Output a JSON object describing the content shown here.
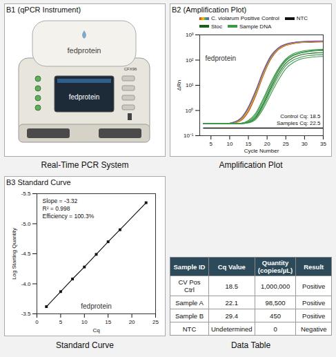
{
  "instrument": {
    "title": "B1 (qPCR Instrument)",
    "lid_label": "fedprotein",
    "model_label": "CFX96",
    "screen_text": "fedprotein",
    "caption": "Real-Time PCR System"
  },
  "chart_data": [
    {
      "type": "line",
      "title": "B2 (Amplification Plot)",
      "caption": "Amplification Plot",
      "watermark": "fedprotein",
      "x_label": "Cycle Number",
      "y_label": "ΔRn",
      "x": [
        3,
        5,
        7,
        9,
        11,
        13,
        15,
        17,
        19,
        21,
        23,
        25,
        27,
        29,
        31,
        33,
        35
      ],
      "series": [
        {
          "name": "C. violarum Positive Control",
          "color": "#e41a1c",
          "values": [
            0.3,
            0.3,
            0.3,
            0.3,
            0.32,
            0.4,
            0.9,
            4,
            25,
            110,
            260,
            380,
            450,
            490,
            510,
            520,
            525
          ]
        },
        {
          "name": "C. violarum Positive Control",
          "color": "#ff7f00",
          "values": [
            0.3,
            0.3,
            0.3,
            0.3,
            0.32,
            0.42,
            1.0,
            4.5,
            28,
            120,
            270,
            390,
            460,
            500,
            520,
            530,
            535
          ]
        },
        {
          "name": "C. violarum Positive Control",
          "color": "#f5c400",
          "values": [
            0.3,
            0.3,
            0.3,
            0.3,
            0.33,
            0.44,
            1.1,
            5,
            30,
            125,
            280,
            400,
            470,
            510,
            530,
            540,
            545
          ]
        },
        {
          "name": "C. violarum Positive Control",
          "color": "#4daf4a",
          "values": [
            0.3,
            0.3,
            0.3,
            0.3,
            0.33,
            0.46,
            1.2,
            5.5,
            33,
            130,
            290,
            410,
            480,
            520,
            540,
            550,
            555
          ]
        },
        {
          "name": "C. violarum Positive Control",
          "color": "#377eb8",
          "values": [
            0.3,
            0.3,
            0.3,
            0.3,
            0.34,
            0.48,
            1.3,
            6,
            35,
            140,
            300,
            420,
            490,
            530,
            550,
            560,
            565
          ]
        },
        {
          "name": "C. violarum Positive Control",
          "color": "#984ea3",
          "values": [
            0.3,
            0.3,
            0.3,
            0.3,
            0.34,
            0.5,
            1.4,
            6.5,
            38,
            150,
            310,
            430,
            500,
            540,
            560,
            570,
            575
          ]
        },
        {
          "name": "NTC",
          "color": "#111111",
          "values": [
            0.2,
            0.2,
            0.2,
            0.2,
            0.2,
            0.2,
            0.2,
            0.2,
            0.2,
            0.2,
            0.2,
            0.2,
            0.2,
            0.2,
            0.2,
            0.2,
            0.2
          ]
        },
        {
          "name": "Stoc",
          "color": "#1b5e20",
          "values": [
            0.3,
            0.3,
            0.3,
            0.3,
            0.3,
            0.3,
            0.34,
            0.55,
            1.8,
            7.5,
            28,
            75,
            125,
            160,
            180,
            192,
            198
          ]
        },
        {
          "name": "Sample DNA",
          "color": "#3a9a48",
          "values": [
            0.3,
            0.3,
            0.3,
            0.3,
            0.3,
            0.31,
            0.35,
            0.6,
            2,
            9,
            35,
            90,
            150,
            190,
            215,
            230,
            238
          ]
        },
        {
          "name": "Sample DNA",
          "color": "#3a9a48",
          "values": [
            0.3,
            0.3,
            0.3,
            0.3,
            0.3,
            0.31,
            0.37,
            0.7,
            2.5,
            11,
            40,
            100,
            160,
            200,
            225,
            240,
            248
          ]
        },
        {
          "name": "Sample DNA",
          "color": "#3a9a48",
          "values": [
            0.3,
            0.3,
            0.3,
            0.3,
            0.3,
            0.3,
            0.33,
            0.5,
            1.5,
            6,
            22,
            60,
            100,
            130,
            150,
            160,
            165
          ]
        },
        {
          "name": "Sample DNA",
          "color": "#3a9a48",
          "values": [
            0.3,
            0.3,
            0.3,
            0.3,
            0.3,
            0.3,
            0.32,
            0.45,
            1.2,
            4.5,
            16,
            45,
            80,
            110,
            125,
            135,
            140
          ]
        },
        {
          "name": "Sample DNA",
          "color": "#3a9a48",
          "values": [
            0.3,
            0.3,
            0.3,
            0.3,
            0.3,
            0.31,
            0.4,
            0.8,
            3,
            13,
            45,
            110,
            180,
            220,
            245,
            260,
            268
          ]
        }
      ],
      "log": "y",
      "xlim": [
        2,
        35
      ],
      "xticks": [
        5,
        10,
        15,
        20,
        25,
        30,
        35
      ],
      "ylim": [
        0.1,
        1000
      ],
      "yticks": [
        {
          "value": 0.1,
          "label": "10⁻¹"
        },
        {
          "value": 1,
          "label": "10⁰"
        },
        {
          "value": 10,
          "label": "10¹"
        },
        {
          "value": 100,
          "label": "10²"
        },
        {
          "value": 1000,
          "label": "10³"
        }
      ],
      "grid": false,
      "legend": "top",
      "annotations": [
        "Control Cq: 18.5",
        "Samples Cq: 22.5"
      ]
    },
    {
      "type": "scatter",
      "title": "B3 Standard Curve",
      "caption": "Standard Curve",
      "watermark": "fedprotein",
      "x_label": "Cq",
      "y_label": "Log Starting Quantity",
      "x": [
        2,
        5,
        7.5,
        10,
        12.5,
        15,
        17.5,
        23
      ],
      "values": [
        -3.62,
        -3.87,
        -4.08,
        -4.28,
        -4.49,
        -4.7,
        -4.9,
        -5.35
      ],
      "color": "#111111",
      "marker": "square",
      "line_style": "solid",
      "xlim": [
        0,
        25
      ],
      "xticks": [
        0,
        5,
        10,
        15,
        20,
        25
      ],
      "ylim": [
        -3.5,
        -5.5
      ],
      "yticks": [
        -3.5,
        {
          "value": -4,
          "label": "-4.0"
        },
        -4.5,
        {
          "value": -5,
          "label": "-5.0"
        },
        -5.5
      ],
      "grid": false,
      "annotations": [
        "Slope = -3.32",
        "R² = 0.998",
        "Efficiency = 100.3%"
      ]
    }
  ],
  "table": {
    "caption": "Data Table",
    "columns": [
      "Sample ID",
      "Cq Value",
      "Quantity (copies/µL)",
      "Result"
    ],
    "rows": [
      [
        "CV Pos Ctrl",
        "18.5",
        "1,000,000",
        "Positive"
      ],
      [
        "Sample A",
        "22.1",
        "98,500",
        "Positive"
      ],
      [
        "Sample B",
        "29.4",
        "450",
        "Positive"
      ],
      [
        "NTC",
        "Undetermined",
        "0",
        "Negative"
      ]
    ]
  }
}
